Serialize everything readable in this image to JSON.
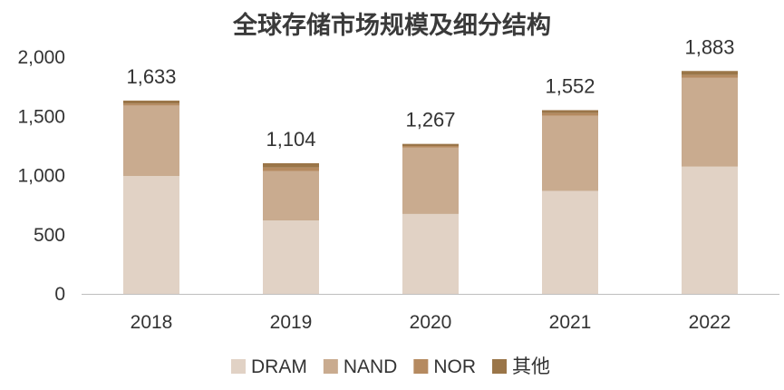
{
  "chart_data": {
    "type": "bar",
    "stacked": true,
    "title": "全球存储市场规模及细分结构",
    "categories": [
      "2018",
      "2019",
      "2020",
      "2021",
      "2022"
    ],
    "series": [
      {
        "name": "DRAM",
        "values": [
          996,
          620,
          675,
          870,
          1075
        ],
        "color": "#e1d2c5"
      },
      {
        "name": "NAND",
        "values": [
          595,
          418,
          560,
          635,
          750
        ],
        "color": "#c9ab8f"
      },
      {
        "name": "NOR",
        "values": [
          16,
          30,
          14,
          22,
          24
        ],
        "color": "#b58a60"
      },
      {
        "name": "其他",
        "values": [
          26,
          36,
          18,
          25,
          34
        ],
        "color": "#9a7548"
      }
    ],
    "totals": [
      "1,633",
      "1,104",
      "1,267",
      "1,552",
      "1,883"
    ],
    "totals_values": [
      1633,
      1104,
      1267,
      1552,
      1883
    ],
    "y_ticks": [
      "0",
      "500",
      "1,000",
      "1,500",
      "2,000"
    ],
    "y_tick_values": [
      0,
      500,
      1000,
      1500,
      2000
    ],
    "ylim": [
      0,
      2000
    ],
    "grid": false,
    "legend_position": "bottom"
  }
}
